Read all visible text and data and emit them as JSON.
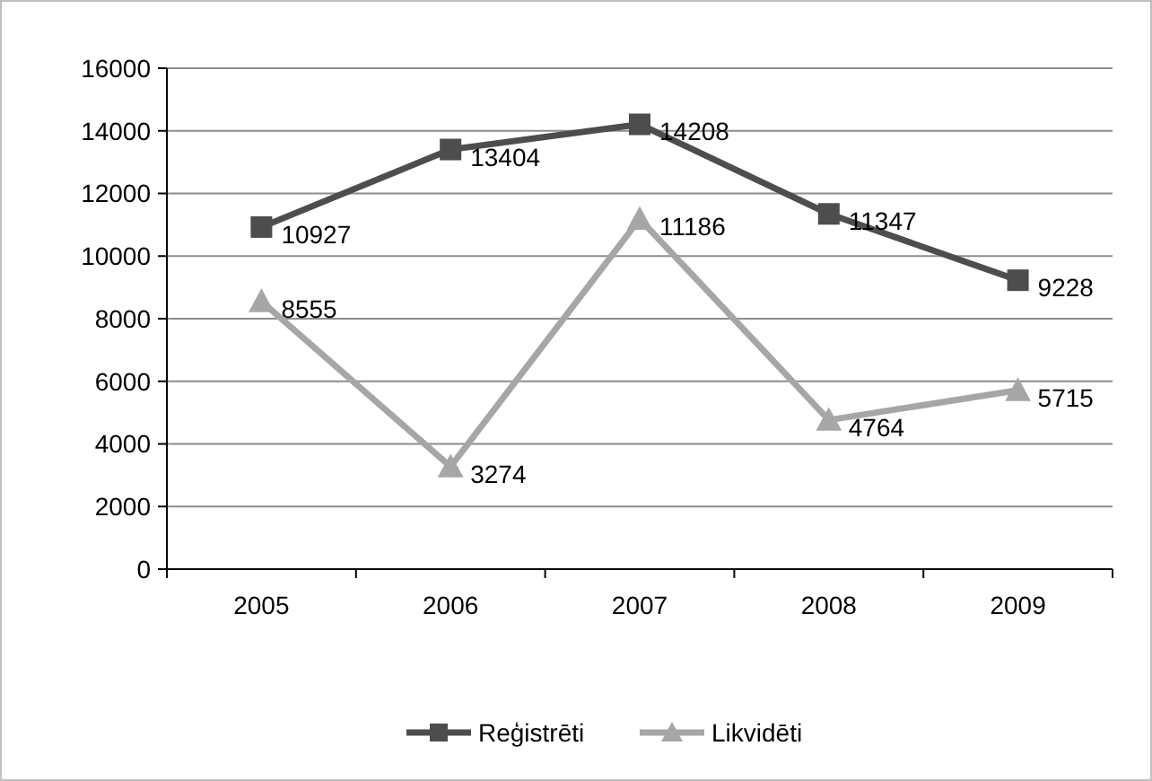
{
  "chart_data": {
    "type": "line",
    "categories": [
      "2005",
      "2006",
      "2007",
      "2008",
      "2009"
    ],
    "series": [
      {
        "name": "Reģistrēti",
        "color": "#4d4d4d",
        "values": [
          10927,
          13404,
          14208,
          11347,
          9228
        ],
        "marker": "square"
      },
      {
        "name": "Likvidēti",
        "color": "#a6a6a6",
        "values": [
          8555,
          3274,
          11186,
          4764,
          5715
        ],
        "marker": "triangle"
      }
    ],
    "ylim": [
      0,
      16000
    ],
    "yticks": [
      0,
      2000,
      4000,
      6000,
      8000,
      10000,
      12000,
      14000,
      16000
    ],
    "grid": "y",
    "legend": "bottom",
    "data_labels": true,
    "line_style": "solid"
  }
}
